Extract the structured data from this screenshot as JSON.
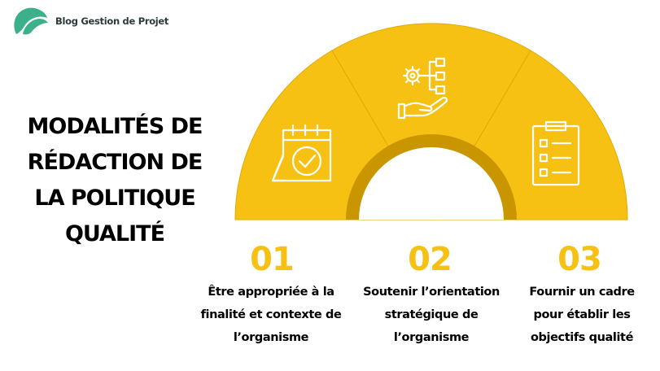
{
  "brand": {
    "name": "Blog Gestion de Projet",
    "colors": {
      "logo": "#3bb08a",
      "accent": "#f7c114",
      "dark_accent": "#c99600"
    }
  },
  "title": [
    "MODALITÉS DE",
    "RÉDACTION DE",
    "LA POLITIQUE",
    "QUALITÉ"
  ],
  "steps": [
    {
      "number": "01",
      "icon": "calendar-check-icon",
      "text": [
        "Être appropriée à la",
        "finalité et contexte de",
        "l’organisme"
      ]
    },
    {
      "number": "02",
      "icon": "hand-gear-workflow-icon",
      "text": [
        "Soutenir l’orientation",
        "stratégique de",
        "l’organisme"
      ]
    },
    {
      "number": "03",
      "icon": "clipboard-checklist-icon",
      "text": [
        "Fournir un cadre",
        "pour établir les",
        "objectifs qualité"
      ]
    }
  ]
}
